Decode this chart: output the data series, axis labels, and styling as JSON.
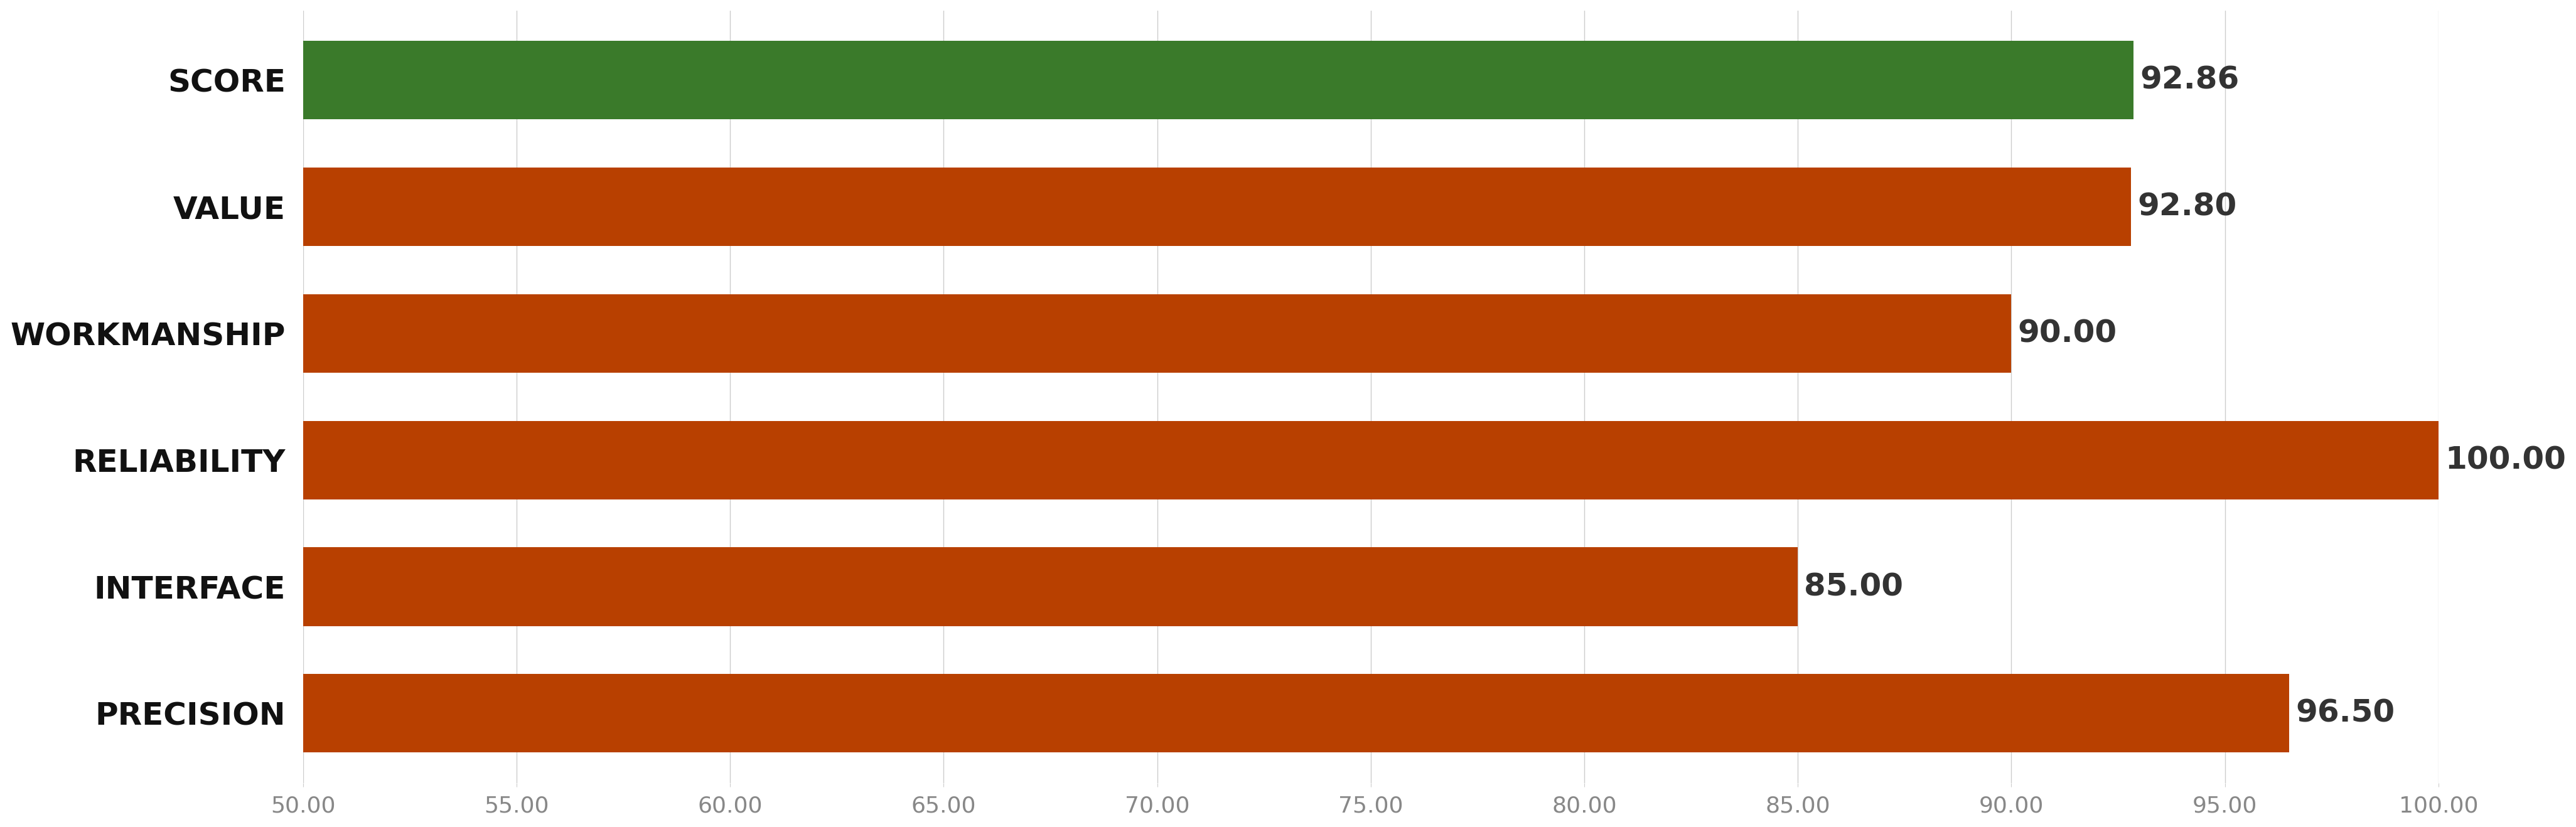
{
  "categories": [
    "SCORE",
    "VALUE",
    "WORKMANSHIP",
    "RELIABILITY",
    "INTERFACE",
    "PRECISION"
  ],
  "values": [
    92.86,
    92.8,
    90.0,
    100.0,
    85.0,
    96.5
  ],
  "bar_colors": [
    "#3a7a2a",
    "#b84000",
    "#b84000",
    "#b84000",
    "#b84000",
    "#b84000"
  ],
  "value_labels": [
    "92.86",
    "92.80",
    "90.00",
    "100.00",
    "85.00",
    "96.50"
  ],
  "xlim_min": 50.0,
  "xlim_max": 100.0,
  "xticks": [
    50.0,
    55.0,
    60.0,
    65.0,
    70.0,
    75.0,
    80.0,
    85.0,
    90.0,
    95.0,
    100.0
  ],
  "xtick_labels": [
    "50.00",
    "55.00",
    "60.00",
    "65.00",
    "70.00",
    "75.00",
    "80.00",
    "85.00",
    "90.00",
    "95.00",
    "100.00"
  ],
  "background_color": "#ffffff",
  "grid_color": "#cccccc",
  "label_fontsize": 36,
  "value_fontsize": 36,
  "tick_fontsize": 26,
  "label_color": "#111111",
  "value_color": "#333333",
  "bar_height": 0.62
}
